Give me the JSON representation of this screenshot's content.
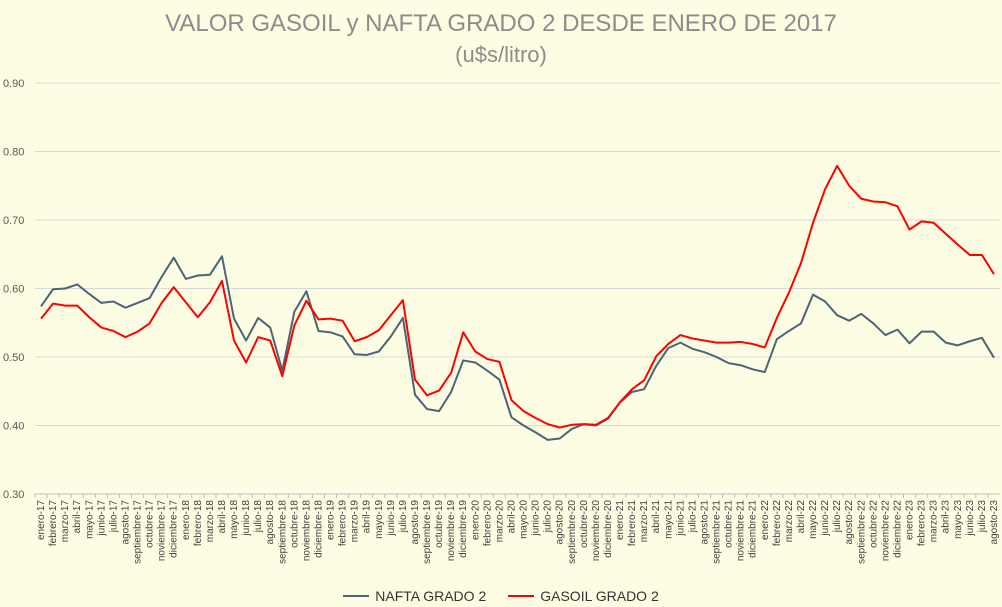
{
  "chart_data": {
    "type": "line",
    "title": "VALOR GASOIL y NAFTA GRADO 2 DESDE ENERO DE 2017",
    "subtitle": "(u$s/litro)",
    "ylim": [
      0.3,
      0.9
    ],
    "yticks": [
      "0.30",
      "0.40",
      "0.50",
      "0.60",
      "0.70",
      "0.80",
      "0.90"
    ],
    "grid": true,
    "legend_position": "bottom",
    "categories": [
      "enero-17",
      "febrero-17",
      "marzo-17",
      "abril-17",
      "mayo-17",
      "junio-17",
      "julio-17",
      "agosto-17",
      "septiembre-17",
      "octubre-17",
      "noviembre-17",
      "diciembre-17",
      "enero-18",
      "febrero-18",
      "marzo-18",
      "abril-18",
      "mayo-18",
      "junio-18",
      "julio-18",
      "agosto-18",
      "septiembre-18",
      "octubre-18",
      "noviembre-18",
      "diciembre-18",
      "enero-19",
      "febrero-19",
      "marzo-19",
      "abril-19",
      "mayo-19",
      "junio-19",
      "julio-19",
      "agosto-19",
      "septiembre-19",
      "octubre-19",
      "noviembre-19",
      "diciembre-19",
      "enero-20",
      "febrero-20",
      "marzo-20",
      "abril-20",
      "mayo-20",
      "junio-20",
      "julio-20",
      "agosto-20",
      "septiembre-20",
      "octubre-20",
      "noviembre-20",
      "diciembre-20",
      "enero-21",
      "febrero-21",
      "marzo-21",
      "abril-21",
      "mayo-21",
      "junio-21",
      "julio-21",
      "agosto-21",
      "septiembre-21",
      "octubre-21",
      "noviembre-21",
      "diciembre-21",
      "enero-22",
      "febrero-22",
      "marzo-22",
      "abril-22",
      "mayo-22",
      "junio-22",
      "julio-22",
      "agosto-22",
      "septiembre-22",
      "octubre-22",
      "noviembre-22",
      "diciembre-22",
      "enero-23",
      "febrero-23",
      "marzo-23",
      "abril-23",
      "mayo-23",
      "junio-23",
      "julio-23",
      "agosto-23"
    ],
    "series": [
      {
        "name": "NAFTA GRADO 2",
        "color": "#4a6478",
        "values": [
          0.574,
          0.599,
          0.6,
          0.606,
          0.592,
          0.579,
          0.581,
          0.572,
          0.579,
          0.586,
          0.617,
          0.645,
          0.614,
          0.619,
          0.62,
          0.647,
          0.556,
          0.524,
          0.557,
          0.543,
          0.48,
          0.566,
          0.596,
          0.538,
          0.536,
          0.53,
          0.504,
          0.503,
          0.508,
          0.53,
          0.557,
          0.445,
          0.424,
          0.421,
          0.449,
          0.495,
          0.492,
          0.48,
          0.467,
          0.412,
          0.4,
          0.39,
          0.379,
          0.381,
          0.395,
          0.402,
          0.4,
          0.41,
          0.434,
          0.449,
          0.453,
          0.487,
          0.513,
          0.521,
          0.512,
          0.507,
          0.5,
          0.491,
          0.488,
          0.482,
          0.478,
          0.526,
          0.538,
          0.549,
          0.591,
          0.581,
          0.561,
          0.553,
          0.563,
          0.549,
          0.532,
          0.54,
          0.52,
          0.537,
          0.537,
          0.521,
          0.517,
          0.523,
          0.528,
          0.499
        ]
      },
      {
        "name": "GASOIL GRADO 2",
        "color": "#ff0000",
        "values": [
          0.556,
          0.578,
          0.575,
          0.575,
          0.558,
          0.543,
          0.538,
          0.529,
          0.537,
          0.549,
          0.579,
          0.602,
          0.58,
          0.558,
          0.58,
          0.611,
          0.524,
          0.492,
          0.529,
          0.524,
          0.472,
          0.546,
          0.582,
          0.555,
          0.556,
          0.553,
          0.523,
          0.529,
          0.539,
          0.561,
          0.583,
          0.467,
          0.444,
          0.451,
          0.477,
          0.536,
          0.508,
          0.497,
          0.493,
          0.437,
          0.421,
          0.411,
          0.402,
          0.397,
          0.401,
          0.402,
          0.401,
          0.411,
          0.434,
          0.453,
          0.466,
          0.501,
          0.519,
          0.532,
          0.527,
          0.524,
          0.521,
          0.521,
          0.522,
          0.519,
          0.514,
          0.557,
          0.594,
          0.637,
          0.696,
          0.745,
          0.779,
          0.75,
          0.731,
          0.727,
          0.726,
          0.72,
          0.686,
          0.698,
          0.696,
          0.68,
          0.664,
          0.649,
          0.649,
          0.621
        ]
      }
    ]
  }
}
